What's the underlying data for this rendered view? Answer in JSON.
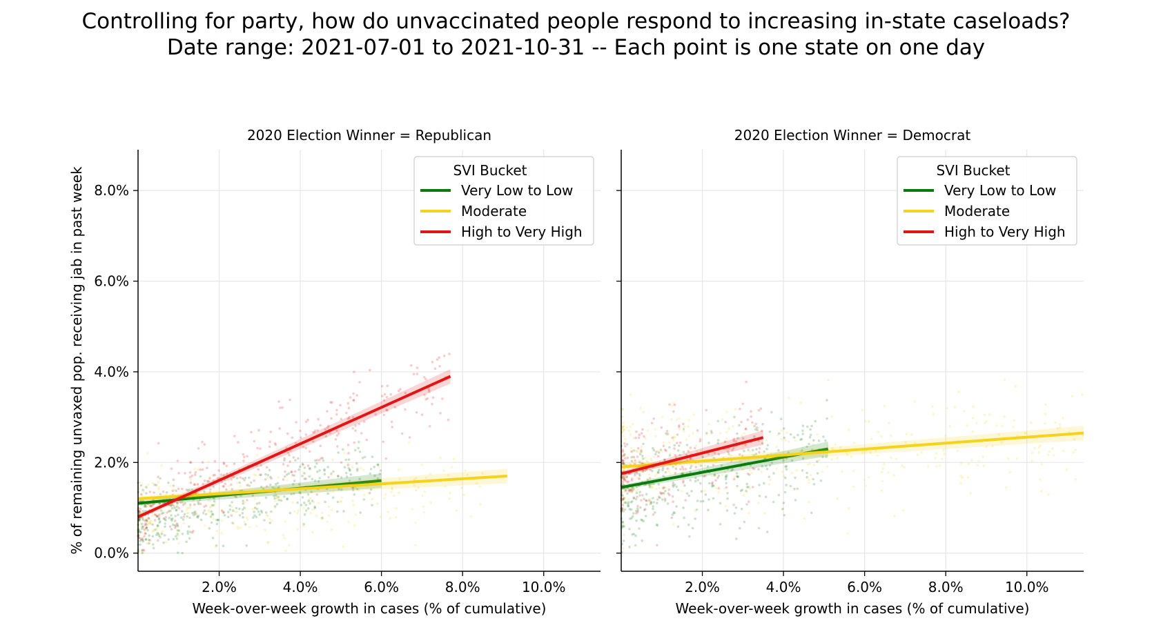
{
  "suptitle": [
    "Controlling for party, how do unvaccinated people respond to increasing in-state caseloads?",
    "Date range: 2021-07-01 to 2021-10-31 -- Each point is one state on one day"
  ],
  "colors": {
    "very_low_to_low": "#0a7a0a",
    "moderate": "#f5d21b",
    "high_to_very_high": "#e21414",
    "grid": "#e6e6e6"
  },
  "chart_data": [
    {
      "type": "scatter",
      "title": "2020 Election Winner = Republican",
      "xlabel": "Week-over-week growth in cases (% of cumulative)",
      "ylabel": "% of remaining unvaxed pop. receiving jab in past week",
      "xlim": [
        0.0,
        11.4
      ],
      "ylim": [
        -0.4,
        8.9
      ],
      "xticks": [
        2.0,
        4.0,
        6.0,
        8.0,
        10.0
      ],
      "yticks": [
        0.0,
        2.0,
        4.0,
        6.0,
        8.0
      ],
      "xtick_labels": [
        "2.0%",
        "4.0%",
        "6.0%",
        "8.0%",
        "10.0%"
      ],
      "ytick_labels": [
        "0.0%",
        "2.0%",
        "4.0%",
        "6.0%",
        "8.0%"
      ],
      "grid": true,
      "legend": {
        "title": "SVI Bucket",
        "position": "top-right",
        "entries": [
          "Very Low to Low",
          "Moderate",
          "High to Very High"
        ]
      },
      "series": [
        {
          "name": "Very Low to Low",
          "color": "#0a7a0a",
          "fit": {
            "x": [
              0.0,
              6.0
            ],
            "y": [
              1.1,
              1.6
            ]
          },
          "scatter_cluster": {
            "x_range": [
              0.0,
              6.0
            ],
            "y_center": [
              0.6,
              1.9
            ],
            "spread": 0.35,
            "n": 420
          }
        },
        {
          "name": "Moderate",
          "color": "#f5d21b",
          "fit": {
            "x": [
              0.0,
              9.1
            ],
            "y": [
              1.2,
              1.7
            ]
          },
          "scatter_cluster": {
            "x_range": [
              0.0,
              8.5
            ],
            "y_center": [
              0.8,
              1.5
            ],
            "spread": 0.45,
            "n": 260
          }
        },
        {
          "name": "High to Very High",
          "color": "#e21414",
          "fit": {
            "x": [
              0.0,
              7.7
            ],
            "y": [
              0.8,
              3.9
            ]
          },
          "scatter_cluster": {
            "x_range": [
              0.0,
              7.7
            ],
            "y_center": [
              0.8,
              3.9
            ],
            "spread": 0.45,
            "n": 330
          }
        }
      ]
    },
    {
      "type": "scatter",
      "title": "2020 Election Winner = Democrat",
      "xlabel": "Week-over-week growth in cases (% of cumulative)",
      "ylabel": "",
      "xlim": [
        0.0,
        11.4
      ],
      "ylim": [
        -0.4,
        8.9
      ],
      "xticks": [
        2.0,
        4.0,
        6.0,
        8.0,
        10.0
      ],
      "yticks": [
        0.0,
        2.0,
        4.0,
        6.0,
        8.0
      ],
      "xtick_labels": [
        "2.0%",
        "4.0%",
        "6.0%",
        "8.0%",
        "10.0%"
      ],
      "ytick_labels": [],
      "grid": true,
      "legend": {
        "title": "SVI Bucket",
        "position": "top-right",
        "entries": [
          "Very Low to Low",
          "Moderate",
          "High to Very High"
        ]
      },
      "series": [
        {
          "name": "Very Low to Low",
          "color": "#0a7a0a",
          "fit": {
            "x": [
              0.0,
              5.1
            ],
            "y": [
              1.45,
              2.3
            ]
          },
          "scatter_cluster": {
            "x_range": [
              0.0,
              5.1
            ],
            "y_center": [
              1.2,
              2.2
            ],
            "spread": 0.55,
            "n": 400
          }
        },
        {
          "name": "Moderate",
          "color": "#f5d21b",
          "fit": {
            "x": [
              0.0,
              11.4
            ],
            "y": [
              1.9,
              2.65
            ]
          },
          "scatter_cluster": {
            "x_range": [
              0.0,
              11.4
            ],
            "y_center": [
              2.1,
              2.3
            ],
            "spread": 0.6,
            "n": 380
          }
        },
        {
          "name": "High to Very High",
          "color": "#e21414",
          "fit": {
            "x": [
              0.0,
              3.5
            ],
            "y": [
              1.75,
              2.55
            ]
          },
          "scatter_cluster": {
            "x_range": [
              0.0,
              3.5
            ],
            "y_center": [
              1.6,
              2.5
            ],
            "spread": 0.55,
            "n": 230
          }
        }
      ]
    }
  ]
}
